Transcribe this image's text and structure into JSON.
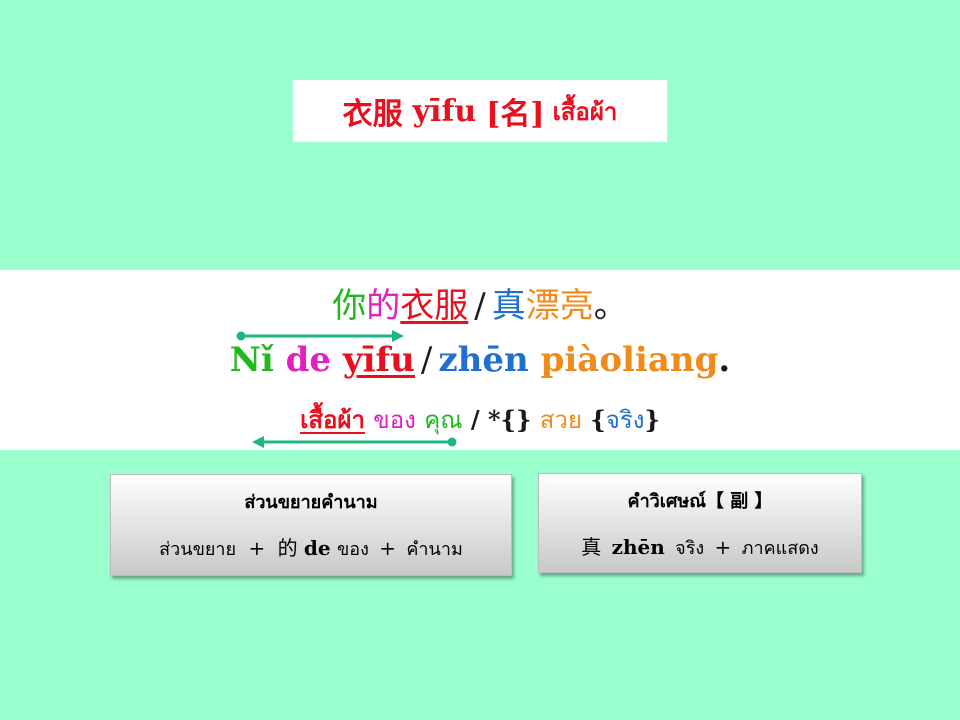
{
  "title": {
    "hanzi": "衣服",
    "pinyin": "yīfu",
    "pos": "[名]",
    "thai": "เสื้อผ้า"
  },
  "sentence": {
    "hanzi": [
      {
        "text": "你",
        "color": "#22B81E"
      },
      {
        "text": "的",
        "color": "#E020C0"
      },
      {
        "text": "衣服",
        "color": "#E8101E"
      },
      {
        "text": "/",
        "color": "#1a1a1a"
      },
      {
        "text": "真",
        "color": "#1E6FD0"
      },
      {
        "text": "漂亮",
        "color": "#F08A1A"
      },
      {
        "text": "。",
        "color": "#1a1a1a"
      }
    ],
    "pinyin": [
      {
        "text": "Nǐ",
        "color": "#22B81E"
      },
      {
        "text": "de",
        "color": "#E020C0"
      },
      {
        "text": "yīfu",
        "color": "#E8101E"
      },
      {
        "text": "/",
        "color": "#1a1a1a"
      },
      {
        "text": "zhēn",
        "color": "#1E6FD0"
      },
      {
        "text": "piàoliang",
        "color": "#F08A1A"
      },
      {
        "text": ".",
        "color": "#1a1a1a"
      }
    ],
    "thai": [
      {
        "text": "เสื้อผ้า",
        "color": "#E8101E"
      },
      {
        "text": "ของ",
        "color": "#E020C0"
      },
      {
        "text": "คุณ",
        "color": "#22B81E"
      },
      {
        "text": "/ *{}",
        "color": "#1a1a1a"
      },
      {
        "text": "สวย",
        "color": "#F08A1A"
      },
      {
        "text": "{",
        "color": "#1a1a1a"
      },
      {
        "text": "จริง",
        "color": "#1E6FD0"
      },
      {
        "text": "}",
        "color": "#1a1a1a"
      }
    ]
  },
  "boxes": {
    "modifier": {
      "heading": "ส่วนขยายคำนาม",
      "part1": "ส่วนขยาย",
      "plus1": "+",
      "hanzi": "的",
      "pinyin": "de",
      "meaning": "ของ",
      "plus2": "+",
      "part2": "คำนาม"
    },
    "adverb": {
      "heading": "คำวิเศษณ์【 副 】",
      "hanzi": "真",
      "pinyin": "zhēn",
      "meaning": "จริง",
      "plus": "+",
      "part2": "ภาคแสดง"
    }
  },
  "colors": {
    "background": "#99FFCC",
    "arrow": "#1DB584",
    "title_red": "#E8101E"
  }
}
